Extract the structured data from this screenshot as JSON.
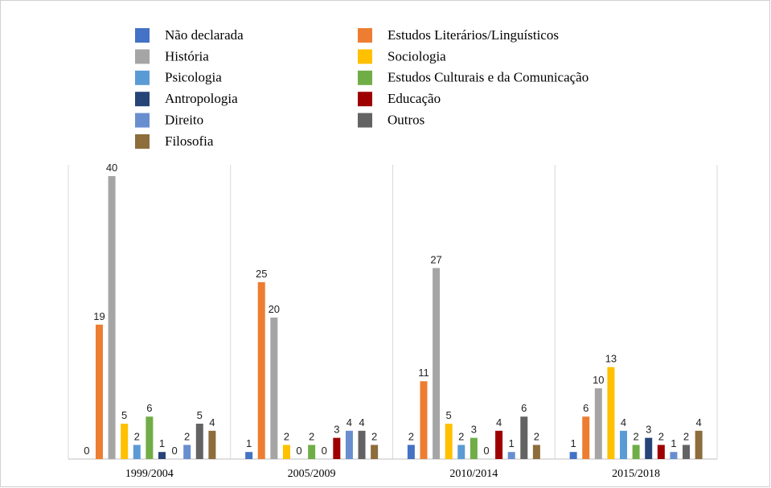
{
  "chart_data": {
    "type": "bar",
    "categories": [
      "1999/2004",
      "2005/2009",
      "2010/2014",
      "2015/2018"
    ],
    "ylim": [
      0,
      40
    ],
    "series": [
      {
        "name": "Não declarada",
        "color": "#4472c4",
        "values": [
          0,
          1,
          2,
          1
        ]
      },
      {
        "name": "Estudos Literários/Linguísticos",
        "color": "#ed7d31",
        "values": [
          19,
          25,
          11,
          6
        ]
      },
      {
        "name": "História",
        "color": "#a5a5a5",
        "values": [
          40,
          20,
          27,
          10
        ]
      },
      {
        "name": "Sociologia",
        "color": "#ffc000",
        "values": [
          5,
          2,
          5,
          13
        ]
      },
      {
        "name": "Psicologia",
        "color": "#5b9bd5",
        "values": [
          2,
          0,
          2,
          4
        ]
      },
      {
        "name": "Estudos Culturais e da Comunicação",
        "color": "#70ad47",
        "values": [
          6,
          2,
          3,
          2
        ]
      },
      {
        "name": "Antropologia",
        "color": "#264478",
        "values": [
          1,
          0,
          0,
          3
        ]
      },
      {
        "name": "Educação",
        "color": "#9e0000",
        "values": [
          0,
          3,
          4,
          2
        ]
      },
      {
        "name": "Direito",
        "color": "#698ed0",
        "values": [
          2,
          4,
          1,
          1
        ]
      },
      {
        "name": "Outros",
        "color": "#636363",
        "values": [
          5,
          4,
          6,
          2
        ]
      },
      {
        "name": "Filosofia",
        "color": "#8c6d3b",
        "values": [
          4,
          2,
          2,
          4
        ]
      }
    ]
  }
}
